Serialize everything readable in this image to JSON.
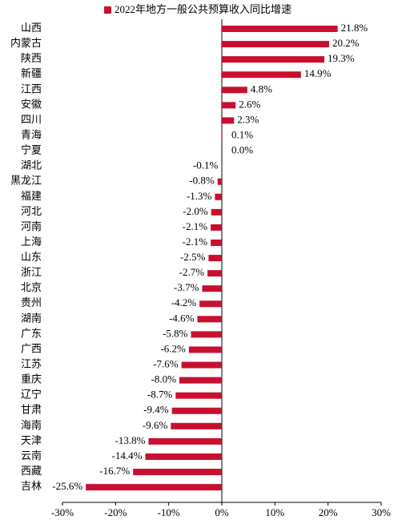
{
  "chart_data": {
    "type": "bar",
    "orientation": "horizontal",
    "categories": [
      "山西",
      "内蒙古",
      "陕西",
      "新疆",
      "江西",
      "安徽",
      "四川",
      "青海",
      "宁夏",
      "湖北",
      "黑龙江",
      "福建",
      "河北",
      "河南",
      "上海",
      "山东",
      "浙江",
      "北京",
      "贵州",
      "湖南",
      "广东",
      "广西",
      "江苏",
      "重庆",
      "辽宁",
      "甘肃",
      "海南",
      "天津",
      "云南",
      "西藏",
      "吉林"
    ],
    "series": [
      {
        "name": "2022年地方一般公共预算收入同比增速",
        "color": "#c8102e",
        "values": [
          21.8,
          20.2,
          19.3,
          14.9,
          4.8,
          2.6,
          2.3,
          0.1,
          0,
          -0.1,
          -0.8,
          -1.3,
          -2.0,
          -2.1,
          -2.1,
          -2.5,
          -2.7,
          -3.7,
          -4.2,
          -4.6,
          -5.8,
          -6.2,
          -7.6,
          -8.0,
          -8.7,
          -9.4,
          -9.6,
          -13.8,
          -14.4,
          -16.7,
          -25.6
        ],
        "value_labels": [
          "21.8%",
          "20.2%",
          "19.3%",
          "14.9%",
          "4.8%",
          "2.6%",
          "2.3%",
          "0.1%",
          "0.0%",
          "-0.1%",
          "-0.8%",
          "-1.3%",
          "-2.0%",
          "-2.1%",
          "-2.1%",
          "-2.5%",
          "-2.7%",
          "-3.7%",
          "-4.2%",
          "-4.6%",
          "-5.8%",
          "-6.2%",
          "-7.6%",
          "-8.0%",
          "-8.7%",
          "-9.4%",
          "-9.6%",
          "-13.8%",
          "-14.4%",
          "-16.7%",
          "-25.6%"
        ]
      }
    ],
    "xlim": [
      -30,
      30
    ],
    "xticks": [
      {
        "value": -30,
        "label": "-30%"
      },
      {
        "value": -20,
        "label": "-20%"
      },
      {
        "value": -10,
        "label": "-10%"
      },
      {
        "value": 0,
        "label": "0%"
      },
      {
        "value": 10,
        "label": "10%"
      },
      {
        "value": 20,
        "label": "20%"
      },
      {
        "value": 30,
        "label": "30%"
      }
    ],
    "legend": "top",
    "grid": false
  }
}
